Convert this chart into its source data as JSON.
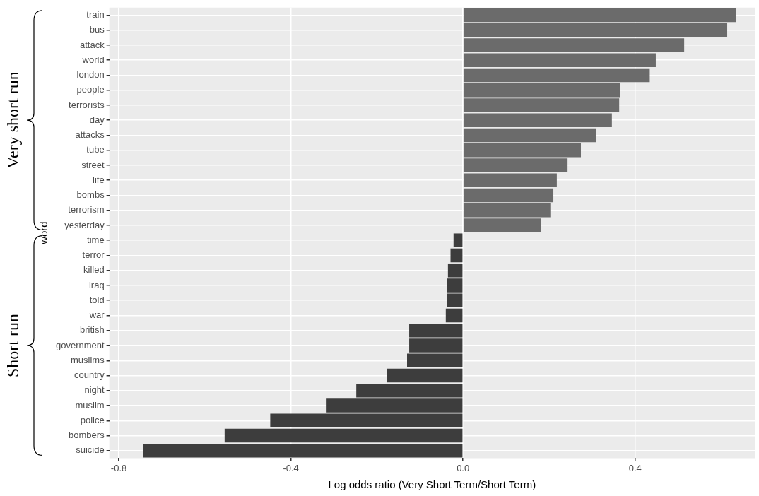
{
  "chart_data": {
    "type": "bar",
    "orientation": "horizontal",
    "categories": [
      "train",
      "bus",
      "attack",
      "world",
      "london",
      "people",
      "terrorists",
      "day",
      "attacks",
      "tube",
      "street",
      "life",
      "bombs",
      "terrorism",
      "yesterday",
      "time",
      "terror",
      "killed",
      "iraq",
      "told",
      "war",
      "british",
      "government",
      "muslims",
      "country",
      "night",
      "muslim",
      "police",
      "bombers",
      "suicide"
    ],
    "values": [
      0.634,
      0.614,
      0.514,
      0.448,
      0.434,
      0.365,
      0.363,
      0.346,
      0.309,
      0.274,
      0.243,
      0.218,
      0.21,
      0.203,
      0.182,
      -0.022,
      -0.029,
      -0.035,
      -0.037,
      -0.037,
      -0.04,
      -0.125,
      -0.125,
      -0.13,
      -0.176,
      -0.248,
      -0.317,
      -0.448,
      -0.554,
      -0.744
    ],
    "colors": [
      "#6b6b6b",
      "#6b6b6b",
      "#6b6b6b",
      "#6b6b6b",
      "#6b6b6b",
      "#6b6b6b",
      "#6b6b6b",
      "#6b6b6b",
      "#6b6b6b",
      "#6b6b6b",
      "#6b6b6b",
      "#6b6b6b",
      "#6b6b6b",
      "#6b6b6b",
      "#6b6b6b",
      "#3d3d3d",
      "#3d3d3d",
      "#3d3d3d",
      "#3d3d3d",
      "#3d3d3d",
      "#3d3d3d",
      "#3d3d3d",
      "#3d3d3d",
      "#3d3d3d",
      "#3d3d3d",
      "#3d3d3d",
      "#3d3d3d",
      "#3d3d3d",
      "#3d3d3d",
      "#3d3d3d"
    ],
    "xlim": [
      -0.822,
      0.678
    ],
    "xticks": [
      {
        "value": -0.8,
        "label": "-0.8"
      },
      {
        "value": -0.4,
        "label": "-0.4"
      },
      {
        "value": 0,
        "label": "0.0"
      },
      {
        "value": 0.4,
        "label": "0.4"
      }
    ],
    "xlabel": "Log odds ratio (Very Short Term/Short Term)",
    "ylabel": "word",
    "grid": true,
    "annotations": [
      "Very short run",
      "Short run"
    ]
  }
}
